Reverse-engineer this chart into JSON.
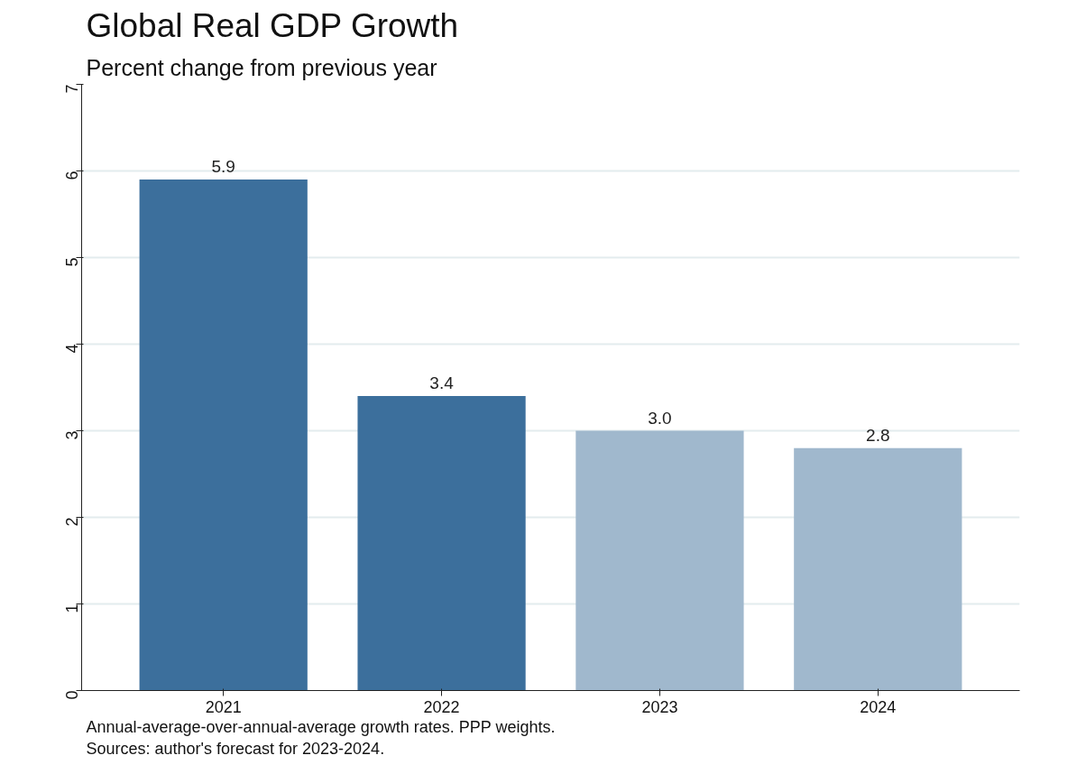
{
  "chart_data": {
    "type": "bar",
    "title": "Global Real GDP Growth",
    "subtitle": "Percent change from previous year",
    "categories": [
      "2021",
      "2022",
      "2023",
      "2024"
    ],
    "values": [
      5.9,
      3.4,
      3.0,
      2.8
    ],
    "colors": [
      "#3c6f9c",
      "#3c6f9c",
      "#a0b8cd",
      "#a0b8cd"
    ],
    "value_labels": [
      "5.9",
      "3.4",
      "3.0",
      "2.8"
    ],
    "ylim": [
      0,
      7
    ],
    "yticks": [
      0,
      1,
      2,
      3,
      4,
      5,
      6,
      7
    ],
    "grid": "y",
    "annotations": [
      "Annual-average-over-annual-average growth rates. PPP weights.",
      "Sources: author's forecast for 2023-2024."
    ]
  }
}
